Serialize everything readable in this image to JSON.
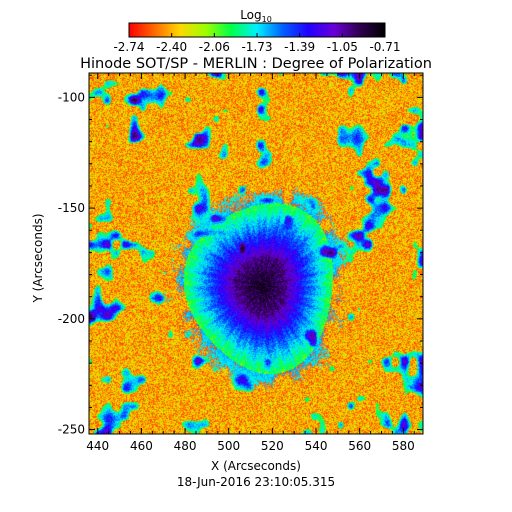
{
  "chart_data": {
    "type": "heatmap",
    "title": "Hinode SOT/SP - MERLIN : Degree of Polarization",
    "subtitle": "18-Jun-2016 23:10:05.315",
    "xlabel": "X (Arcseconds)",
    "ylabel": "Y (Arcseconds)",
    "xlim": [
      436,
      589
    ],
    "ylim": [
      -252,
      -89
    ],
    "x_ticks": [
      440,
      460,
      480,
      500,
      520,
      540,
      560,
      580
    ],
    "y_ticks": [
      -250,
      -200,
      -150,
      -100
    ],
    "colorbar": {
      "label": "Log",
      "label_subscript": "10",
      "ticks": [
        "-2.74",
        "-2.40",
        "-2.06",
        "-1.73",
        "-1.39",
        "-1.05",
        "-0.71"
      ],
      "range": [
        -2.74,
        -0.71
      ],
      "colors": [
        "#ff0000",
        "#ff6a00",
        "#ffd800",
        "#9cff00",
        "#00ff4a",
        "#00f0ff",
        "#0060ff",
        "#2000ff",
        "#6a00d8",
        "#300050",
        "#000000"
      ]
    },
    "features": {
      "sunspot_center": [
        515,
        -185
      ],
      "umbra_radius": 12,
      "penumbra_radius": 22,
      "halo_radius": 34
    }
  }
}
